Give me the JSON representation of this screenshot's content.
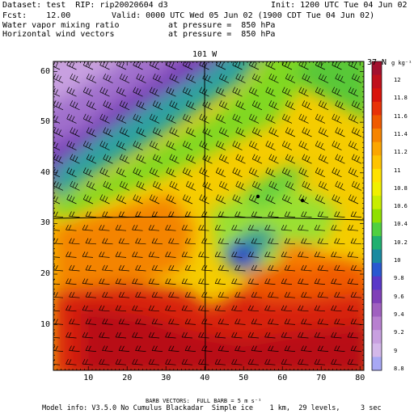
{
  "header": {
    "dataset_line": "Dataset: test  RIP: rip20020604 d3",
    "init_line": "Init: 1200 UTC Tue 04 Jun 02",
    "fcst_line": "Fcst:    12.00",
    "valid_line": "Valid: 0000 UTC Wed 05 Jun 02 (1900 CDT Tue 04 Jun 02)",
    "field1_name": "Water vapor mixing ratio",
    "field1_pressure": "at pressure =  850 hPa",
    "field2_name": "Horizontal wind vectors",
    "field2_pressure": "at pressure =  850 hPa"
  },
  "map": {
    "top_meridian_label": "101 W",
    "right_parallel_label": "37 N",
    "x_ticks": [
      "10",
      "20",
      "30",
      "40",
      "50",
      "60",
      "70",
      "80"
    ],
    "y_ticks": [
      "10",
      "20",
      "30",
      "40",
      "50",
      "60"
    ],
    "x_range": [
      1,
      81
    ],
    "y_range": [
      1,
      62
    ]
  },
  "colorbar": {
    "unit_label": "g kg⁻¹",
    "labels": [
      "12",
      "11.8",
      "11.6",
      "11.4",
      "11.2",
      "11",
      "10.8",
      "10.6",
      "10.4",
      "10.2",
      "10",
      "9.8",
      "9.6",
      "9.4",
      "9.2",
      "9",
      "8.8"
    ],
    "colors": [
      "#a3102e",
      "#c0101c",
      "#d8140c",
      "#e83208",
      "#f05a00",
      "#f68400",
      "#fca600",
      "#ffc400",
      "#ffe200",
      "#f0f000",
      "#c8ee00",
      "#90e000",
      "#50d040",
      "#20b070",
      "#1a8aa0",
      "#2a58d0",
      "#5a38c8",
      "#8040b8",
      "#a060c0",
      "#b880d0",
      "#c8a0e0",
      "#d4b8ea",
      "#a8a8f4"
    ]
  },
  "footer": {
    "barb_note": "BARB VECTORS:  FULL BARB = 5 m s⁻¹",
    "model_info": "Model info: V3.5.0 No Cumulus Blackadar  Simple ice    1 km,  29 levels,     3 sec"
  }
}
